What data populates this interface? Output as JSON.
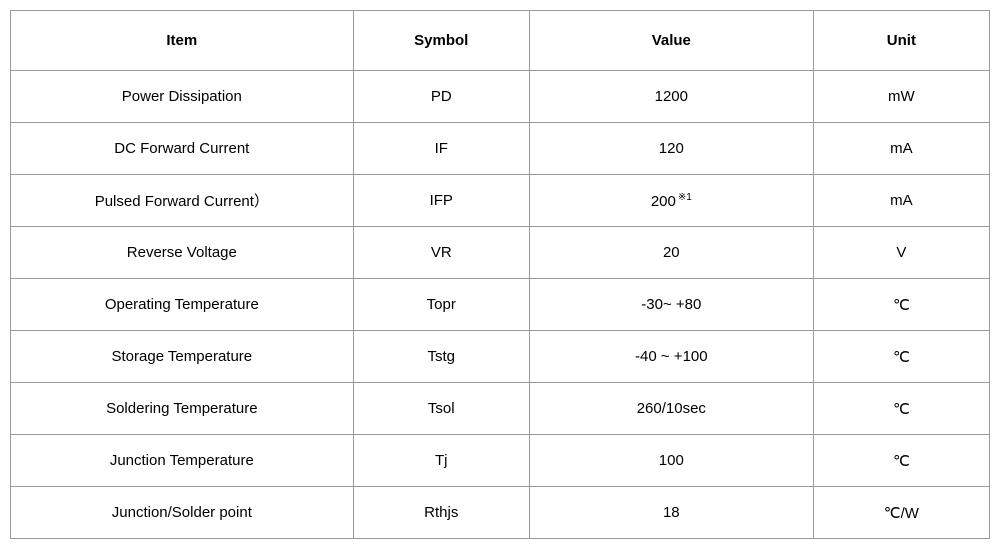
{
  "table": {
    "columns": [
      "Item",
      "Symbol",
      "Value",
      "Unit"
    ],
    "rows": [
      {
        "item": "Power Dissipation",
        "symbol": "PD",
        "value": "1200",
        "unit": "mW"
      },
      {
        "item": "DC Forward Current",
        "symbol": "IF",
        "value": "120",
        "unit": "mA"
      },
      {
        "item": "Pulsed Forward Current）",
        "symbol": "IFP",
        "value": "200",
        "value_sup": "※1",
        "unit": "mA"
      },
      {
        "item": "Reverse Voltage",
        "symbol": "VR",
        "value": "20",
        "unit": "V"
      },
      {
        "item": "Operating Temperature",
        "symbol": "Topr",
        "value": "-30~ +80",
        "unit": "℃"
      },
      {
        "item": "Storage Temperature",
        "symbol": "Tstg",
        "value": "-40 ~ +100",
        "unit": "℃"
      },
      {
        "item": "Soldering Temperature",
        "symbol": "Tsol",
        "value": "260/10sec",
        "unit": "℃"
      },
      {
        "item": "Junction Temperature",
        "symbol": "Tj",
        "value": "100",
        "unit": "℃"
      },
      {
        "item": "Junction/Solder point",
        "symbol": "Rthjs",
        "value": "18",
        "unit": "℃/W"
      }
    ],
    "styling": {
      "border_color": "#999999",
      "background_color": "#ffffff",
      "header_font_weight": "bold",
      "body_font_weight": "normal",
      "font_size": 15,
      "header_row_height": 60,
      "body_row_height": 52,
      "column_widths_percent": [
        35,
        18,
        29,
        18
      ],
      "text_align": "center",
      "text_color": "#000000"
    }
  }
}
